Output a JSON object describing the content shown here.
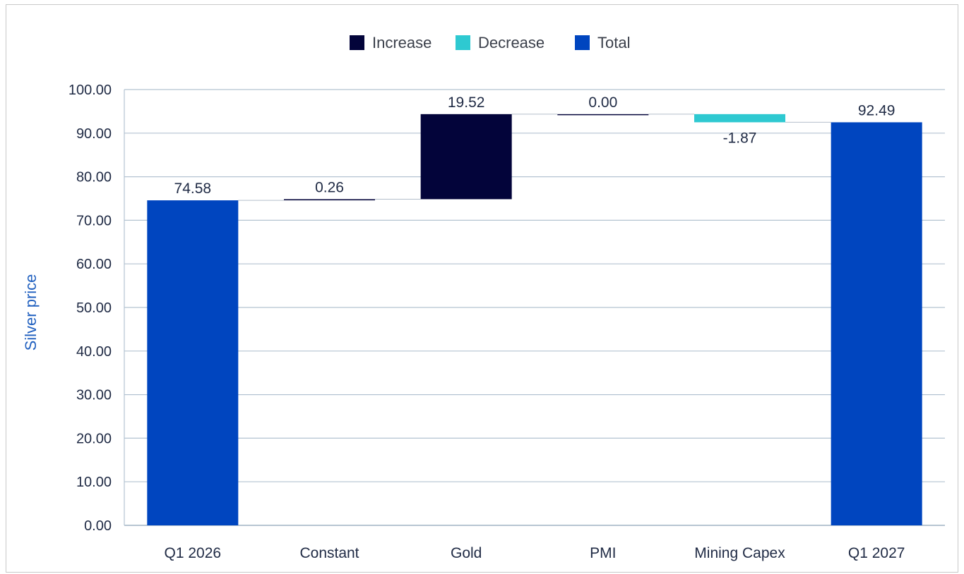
{
  "chart_data": {
    "type": "waterfall",
    "title": "",
    "xlabel": "",
    "ylabel": "Silver price",
    "ylim": [
      0,
      100
    ],
    "yticks": [
      "0.00",
      "10.00",
      "20.00",
      "30.00",
      "40.00",
      "50.00",
      "60.00",
      "70.00",
      "80.00",
      "90.00",
      "100.00"
    ],
    "grid": true,
    "legend_position": "top-center",
    "legend": [
      {
        "name": "Increase",
        "color": "#03043a"
      },
      {
        "name": "Decrease",
        "color": "#2ec9d1"
      },
      {
        "name": "Total",
        "color": "#0045bf"
      }
    ],
    "categories": [
      "Q1 2026",
      "Constant",
      "Gold",
      "PMI",
      "Mining Capex",
      "Q1 2027"
    ],
    "values": [
      74.58,
      0.26,
      19.52,
      0.0,
      -1.87,
      92.49
    ],
    "kinds": [
      "total",
      "increase",
      "increase",
      "increase",
      "decrease",
      "total"
    ],
    "labels": [
      "74.58",
      "0.26",
      "19.52",
      "0.00",
      "-1.87",
      "92.49"
    ]
  }
}
